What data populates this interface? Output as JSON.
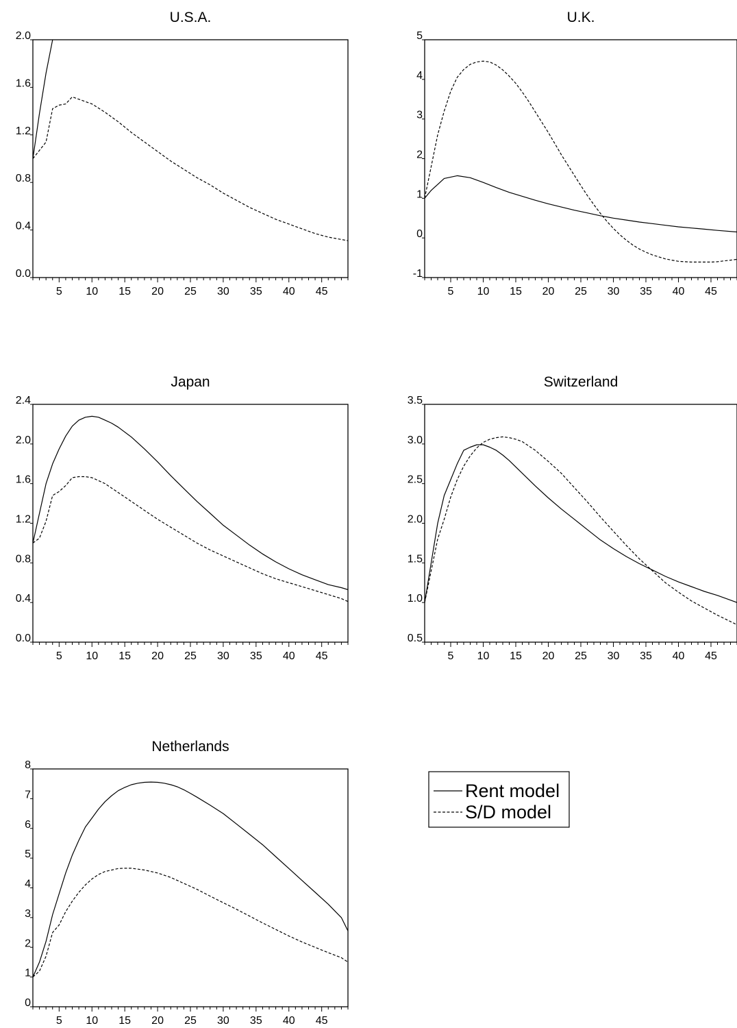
{
  "chart_data": [
    {
      "type": "line",
      "title": "U.S.A.",
      "xlim": [
        1,
        49
      ],
      "ylim": [
        0.0,
        2.0
      ],
      "yticks": [
        "0.0",
        "0.4",
        "0.8",
        "1.2",
        "1.6",
        "2.0"
      ],
      "xticks": [
        "5",
        "10",
        "15",
        "20",
        "25",
        "30",
        "35",
        "40",
        "45"
      ],
      "grid": false,
      "series": [
        {
          "name": "Rent model",
          "style": "solid",
          "x": [
            1,
            2,
            3,
            4
          ],
          "y": [
            1.0,
            1.38,
            1.72,
            2.0
          ]
        },
        {
          "name": "S/D model",
          "style": "dashed",
          "x": [
            1,
            2,
            3,
            4,
            5,
            6,
            7,
            8,
            10,
            12,
            14,
            16,
            18,
            20,
            22,
            24,
            26,
            28,
            30,
            32,
            34,
            36,
            38,
            40,
            42,
            44,
            46,
            49
          ],
          "y": [
            1.0,
            1.07,
            1.14,
            1.42,
            1.45,
            1.46,
            1.52,
            1.5,
            1.46,
            1.39,
            1.31,
            1.22,
            1.14,
            1.06,
            0.98,
            0.91,
            0.84,
            0.78,
            0.71,
            0.65,
            0.59,
            0.54,
            0.49,
            0.45,
            0.41,
            0.37,
            0.34,
            0.31
          ]
        }
      ]
    },
    {
      "type": "line",
      "title": "U.K.",
      "xlim": [
        1,
        49
      ],
      "ylim": [
        -1,
        5
      ],
      "yticks": [
        "-1",
        "0",
        "1",
        "2",
        "3",
        "4",
        "5"
      ],
      "xticks": [
        "5",
        "10",
        "15",
        "20",
        "25",
        "30",
        "35",
        "40",
        "45"
      ],
      "grid": false,
      "series": [
        {
          "name": "Rent model",
          "style": "solid",
          "x": [
            1,
            2,
            4,
            6,
            8,
            10,
            12,
            14,
            16,
            18,
            20,
            22,
            24,
            26,
            28,
            30,
            32,
            34,
            36,
            38,
            40,
            42,
            44,
            46,
            49
          ],
          "y": [
            1.0,
            1.2,
            1.5,
            1.57,
            1.52,
            1.4,
            1.27,
            1.15,
            1.05,
            0.95,
            0.86,
            0.78,
            0.7,
            0.63,
            0.56,
            0.5,
            0.45,
            0.4,
            0.36,
            0.32,
            0.28,
            0.25,
            0.22,
            0.19,
            0.15
          ]
        },
        {
          "name": "S/D model",
          "style": "dashed",
          "x": [
            1,
            2,
            3,
            4,
            5,
            6,
            7,
            8,
            9,
            10,
            11,
            12,
            13,
            14,
            15,
            16,
            17,
            18,
            19,
            20,
            21,
            22,
            23,
            24,
            25,
            26,
            27,
            28,
            29,
            30,
            31,
            32,
            33,
            34,
            35,
            36,
            37,
            38,
            39,
            40,
            41,
            42,
            43,
            44,
            45,
            46,
            47,
            48,
            49
          ],
          "y": [
            1.0,
            1.8,
            2.6,
            3.2,
            3.7,
            4.05,
            4.25,
            4.38,
            4.44,
            4.46,
            4.44,
            4.36,
            4.24,
            4.08,
            3.9,
            3.68,
            3.44,
            3.18,
            2.92,
            2.66,
            2.38,
            2.1,
            1.84,
            1.58,
            1.32,
            1.07,
            0.84,
            0.62,
            0.42,
            0.24,
            0.08,
            -0.06,
            -0.18,
            -0.28,
            -0.36,
            -0.43,
            -0.48,
            -0.53,
            -0.56,
            -0.59,
            -0.6,
            -0.61,
            -0.61,
            -0.61,
            -0.61,
            -0.6,
            -0.58,
            -0.56,
            -0.54
          ]
        }
      ]
    },
    {
      "type": "line",
      "title": "Japan",
      "xlim": [
        1,
        49
      ],
      "ylim": [
        0.0,
        2.4
      ],
      "yticks": [
        "0.0",
        "0.4",
        "0.8",
        "1.2",
        "1.6",
        "2.0",
        "2.4"
      ],
      "xticks": [
        "5",
        "10",
        "15",
        "20",
        "25",
        "30",
        "35",
        "40",
        "45"
      ],
      "grid": false,
      "series": [
        {
          "name": "Rent model",
          "style": "solid",
          "x": [
            1,
            2,
            3,
            4,
            5,
            6,
            7,
            8,
            9,
            10,
            11,
            12,
            13,
            14,
            16,
            18,
            20,
            22,
            24,
            26,
            28,
            30,
            32,
            34,
            36,
            38,
            40,
            42,
            44,
            46,
            48,
            49
          ],
          "y": [
            1.0,
            1.3,
            1.6,
            1.8,
            1.95,
            2.08,
            2.18,
            2.24,
            2.27,
            2.28,
            2.27,
            2.24,
            2.21,
            2.17,
            2.07,
            1.95,
            1.82,
            1.68,
            1.55,
            1.42,
            1.3,
            1.18,
            1.08,
            0.98,
            0.89,
            0.81,
            0.74,
            0.68,
            0.63,
            0.58,
            0.55,
            0.53
          ]
        },
        {
          "name": "S/D model",
          "style": "dashed",
          "x": [
            1,
            2,
            3,
            4,
            5,
            6,
            7,
            8,
            9,
            10,
            11,
            12,
            14,
            16,
            18,
            20,
            22,
            24,
            26,
            28,
            30,
            32,
            34,
            36,
            38,
            40,
            42,
            44,
            46,
            48,
            49
          ],
          "y": [
            1.0,
            1.05,
            1.22,
            1.48,
            1.52,
            1.58,
            1.66,
            1.67,
            1.67,
            1.66,
            1.63,
            1.6,
            1.51,
            1.42,
            1.33,
            1.24,
            1.16,
            1.08,
            1.0,
            0.93,
            0.87,
            0.81,
            0.75,
            0.69,
            0.64,
            0.6,
            0.56,
            0.52,
            0.48,
            0.44,
            0.41
          ]
        }
      ]
    },
    {
      "type": "line",
      "title": "Switzerland",
      "xlim": [
        1,
        49
      ],
      "ylim": [
        0.5,
        3.5
      ],
      "yticks": [
        "0.5",
        "1.0",
        "1.5",
        "2.0",
        "2.5",
        "3.0",
        "3.5"
      ],
      "xticks": [
        "5",
        "10",
        "15",
        "20",
        "25",
        "30",
        "35",
        "40",
        "45"
      ],
      "grid": false,
      "series": [
        {
          "name": "Rent model",
          "style": "solid",
          "x": [
            1,
            2,
            3,
            4,
            5,
            6,
            7,
            8,
            9,
            10,
            11,
            12,
            13,
            14,
            16,
            18,
            20,
            22,
            24,
            26,
            28,
            30,
            32,
            34,
            36,
            38,
            40,
            42,
            44,
            46,
            48,
            49
          ],
          "y": [
            1.0,
            1.5,
            2.0,
            2.35,
            2.55,
            2.75,
            2.92,
            2.96,
            2.99,
            2.99,
            2.96,
            2.92,
            2.86,
            2.79,
            2.63,
            2.47,
            2.32,
            2.18,
            2.05,
            1.92,
            1.79,
            1.68,
            1.58,
            1.49,
            1.41,
            1.33,
            1.26,
            1.2,
            1.14,
            1.09,
            1.03,
            1.0
          ]
        },
        {
          "name": "S/D model",
          "style": "dashed",
          "x": [
            1,
            2,
            3,
            4,
            5,
            6,
            7,
            8,
            9,
            10,
            11,
            12,
            13,
            14,
            15,
            16,
            18,
            20,
            22,
            24,
            26,
            28,
            30,
            32,
            34,
            36,
            38,
            40,
            42,
            44,
            46,
            48,
            49
          ],
          "y": [
            1.0,
            1.4,
            1.8,
            2.05,
            2.33,
            2.55,
            2.72,
            2.85,
            2.95,
            3.02,
            3.06,
            3.08,
            3.09,
            3.08,
            3.06,
            3.03,
            2.92,
            2.78,
            2.63,
            2.45,
            2.27,
            2.08,
            1.9,
            1.72,
            1.55,
            1.4,
            1.25,
            1.13,
            1.02,
            0.93,
            0.84,
            0.76,
            0.72
          ]
        }
      ]
    },
    {
      "type": "line",
      "title": "Netherlands",
      "xlim": [
        1,
        49
      ],
      "ylim": [
        0,
        8
      ],
      "yticks": [
        "0",
        "1",
        "2",
        "3",
        "4",
        "5",
        "6",
        "7",
        "8"
      ],
      "xticks": [
        "5",
        "10",
        "15",
        "20",
        "25",
        "30",
        "35",
        "40",
        "45"
      ],
      "grid": false,
      "series": [
        {
          "name": "Rent model",
          "style": "solid",
          "x": [
            1,
            2,
            3,
            4,
            5,
            6,
            7,
            8,
            9,
            10,
            11,
            12,
            13,
            14,
            15,
            16,
            17,
            18,
            19,
            20,
            21,
            22,
            23,
            24,
            25,
            26,
            28,
            30,
            32,
            34,
            36,
            38,
            40,
            42,
            44,
            46,
            48,
            49
          ],
          "y": [
            1.0,
            1.5,
            2.2,
            3.1,
            3.8,
            4.5,
            5.1,
            5.6,
            6.05,
            6.35,
            6.65,
            6.9,
            7.1,
            7.27,
            7.38,
            7.47,
            7.52,
            7.55,
            7.56,
            7.55,
            7.52,
            7.47,
            7.4,
            7.3,
            7.18,
            7.05,
            6.78,
            6.5,
            6.15,
            5.8,
            5.45,
            5.05,
            4.65,
            4.25,
            3.85,
            3.45,
            3.0,
            2.55
          ]
        },
        {
          "name": "S/D model",
          "style": "dashed",
          "x": [
            1,
            2,
            3,
            4,
            5,
            6,
            7,
            8,
            9,
            10,
            11,
            12,
            13,
            14,
            15,
            16,
            17,
            18,
            20,
            22,
            24,
            26,
            28,
            30,
            32,
            34,
            36,
            38,
            40,
            42,
            44,
            46,
            48,
            49
          ],
          "y": [
            1.0,
            1.2,
            1.7,
            2.5,
            2.75,
            3.2,
            3.55,
            3.85,
            4.1,
            4.3,
            4.45,
            4.55,
            4.6,
            4.65,
            4.66,
            4.66,
            4.63,
            4.6,
            4.5,
            4.35,
            4.15,
            3.95,
            3.72,
            3.5,
            3.28,
            3.05,
            2.82,
            2.6,
            2.38,
            2.18,
            2.0,
            1.82,
            1.65,
            1.5
          ]
        }
      ]
    }
  ],
  "legend": {
    "entries": [
      {
        "label": "Rent model",
        "style": "solid"
      },
      {
        "label": "S/D model",
        "style": "dashed"
      }
    ]
  }
}
